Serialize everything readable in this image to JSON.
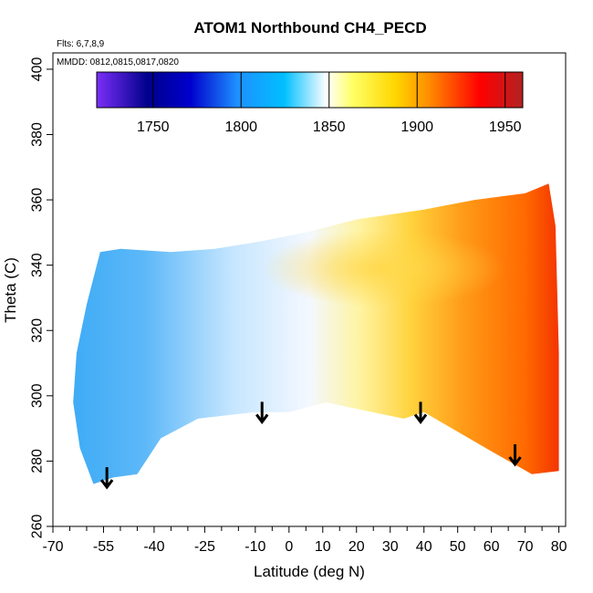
{
  "chart_data": {
    "type": "heatmap",
    "title": "ATOM1 Northbound CH4_PECD",
    "xlabel": "Latitude (deg N)",
    "ylabel": "Theta (C)",
    "flights_note": "Flts: 6,7,8,9",
    "date_note": "MMDD: 0812,0815,0817,0820",
    "xlim": [
      -70,
      82
    ],
    "ylim": [
      260,
      405
    ],
    "x_tick_values": [
      -70,
      -55,
      -40,
      -25,
      -10,
      0,
      10,
      20,
      30,
      40,
      50,
      60,
      70,
      80
    ],
    "x_tick_labels": [
      "-70",
      "-55",
      "-40",
      "-25",
      "-10",
      "0",
      "10",
      "20",
      "30",
      "40",
      "50",
      "60",
      "70",
      "80"
    ],
    "x_minor_ticks": [
      -65,
      -60,
      -50,
      -45,
      -35,
      -30,
      -20,
      -15,
      -5,
      5,
      15,
      25,
      35,
      45,
      55,
      65,
      75
    ],
    "y_tick_values": [
      260,
      280,
      300,
      320,
      340,
      360,
      380,
      400
    ],
    "y_tick_labels": [
      "260",
      "280",
      "300",
      "320",
      "340",
      "360",
      "380",
      "400"
    ],
    "colorbar": {
      "range": [
        1718,
        1960
      ],
      "ticks": [
        1750,
        1800,
        1850,
        1900,
        1950
      ],
      "tick_labels": [
        "1750",
        "1800",
        "1850",
        "1900",
        "1950"
      ],
      "colors": [
        "#7B2FF7",
        "#00008B",
        "#0000CD",
        "#1E90FF",
        "#00BFFF",
        "#FFFFFF",
        "#FFFF66",
        "#FFD700",
        "#FF8C00",
        "#FF0000",
        "#B22222"
      ]
    },
    "arrows": [
      {
        "lat": -54,
        "theta": 272
      },
      {
        "lat": -8,
        "theta": 292
      },
      {
        "lat": 39,
        "theta": 292
      },
      {
        "lat": 67,
        "theta": 279
      }
    ],
    "arrow_color": "#000000"
  }
}
